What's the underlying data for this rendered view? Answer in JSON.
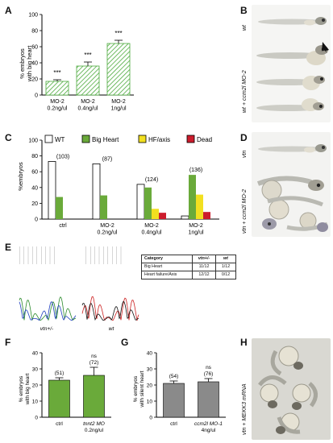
{
  "panel_labels": {
    "A": "A",
    "B": "B",
    "C": "C",
    "D": "D",
    "E": "E",
    "F": "F",
    "G": "G",
    "H": "H"
  },
  "side_labels": {
    "b_top": "wt",
    "b_bottom_pre": "wt + ",
    "b_bottom_gene": "ccm2l",
    "b_bottom_post": " MO-2",
    "d_top": "vtn",
    "d_bottom_pre": "vtn + ",
    "d_bottom_gene": "ccm2l",
    "d_bottom_post": " MO-2",
    "h_pre": "vtn + ",
    "h_gene": "MEKK3",
    "h_post": " mRNA"
  },
  "table_e": {
    "header": [
      "Category",
      "vtn+/-",
      "wt"
    ],
    "rows": [
      [
        "Big Heart",
        "11/12",
        "1/12"
      ],
      [
        "Heart failure/Axis",
        "12/12",
        "0/12"
      ]
    ]
  },
  "seq_labels": {
    "left": "vtn+/-",
    "right": "wt"
  },
  "colors": {
    "green": "#6aaa3a",
    "yellow": "#f2e020",
    "red": "#cc1c2c",
    "hatch": "#4caa3c"
  },
  "chart_data": [
    {
      "id": "A",
      "type": "bar",
      "ylabel_lines": [
        "% embryos",
        "with big heart"
      ],
      "ylim": [
        0,
        100
      ],
      "yticks": [
        0,
        20,
        40,
        60,
        80,
        100
      ],
      "categories": [
        [
          "MO-2",
          "0.2ng/ul"
        ],
        [
          "MO-2",
          "0.4ng/ul"
        ],
        [
          "MO-2",
          "1ng/ul"
        ]
      ],
      "values": [
        17,
        36,
        64
      ],
      "errors": [
        2,
        5,
        4
      ],
      "annotations": [
        "***",
        "***",
        "***"
      ]
    },
    {
      "id": "C",
      "type": "bar",
      "ylabel": "%embryos",
      "ylim": [
        0,
        100
      ],
      "yticks": [
        0,
        20,
        40,
        60,
        80,
        100
      ],
      "legend": [
        "WT",
        "Big Heart",
        "HF/axis",
        "Dead"
      ],
      "categories": [
        [
          "ctrl"
        ],
        [
          "MO-2",
          "0.2ng/ul"
        ],
        [
          "MO-2",
          "0.4ng/ul"
        ],
        [
          "MO-2",
          "1ng/ul"
        ]
      ],
      "group_labels": [
        "(103)",
        "(87)",
        "(124)",
        "(136)"
      ],
      "series": [
        {
          "name": "WT",
          "values": [
            73,
            70,
            44,
            4
          ]
        },
        {
          "name": "Big Heart",
          "values": [
            28,
            30,
            40,
            56
          ]
        },
        {
          "name": "HF/axis",
          "values": [
            0,
            0,
            13,
            31
          ]
        },
        {
          "name": "Dead",
          "values": [
            0,
            0,
            8,
            9
          ]
        }
      ]
    },
    {
      "id": "F",
      "type": "bar",
      "ylabel_lines": [
        "% embryos",
        "with big heart"
      ],
      "ylim": [
        0,
        40
      ],
      "yticks": [
        0,
        10,
        20,
        30,
        40
      ],
      "categories": [
        [
          "ctrl"
        ],
        [
          "tnnt2 MO",
          "0.2ng/ul"
        ]
      ],
      "values": [
        23,
        26
      ],
      "errors": [
        1.5,
        5
      ],
      "counts": [
        "(51)",
        "(72)"
      ],
      "annotations": [
        "",
        "ns"
      ]
    },
    {
      "id": "G",
      "type": "bar",
      "ylabel_lines": [
        "% embryos",
        "with silent heart"
      ],
      "ylim": [
        0,
        40
      ],
      "yticks": [
        0,
        10,
        20,
        30,
        40
      ],
      "categories": [
        [
          "ctrl"
        ],
        [
          "ccm2l MO-1",
          "4ng/ul"
        ]
      ],
      "values": [
        21,
        22
      ],
      "errors": [
        1.5,
        2
      ],
      "counts": [
        "(54)",
        "(76)"
      ],
      "annotations": [
        "",
        "ns"
      ]
    }
  ]
}
